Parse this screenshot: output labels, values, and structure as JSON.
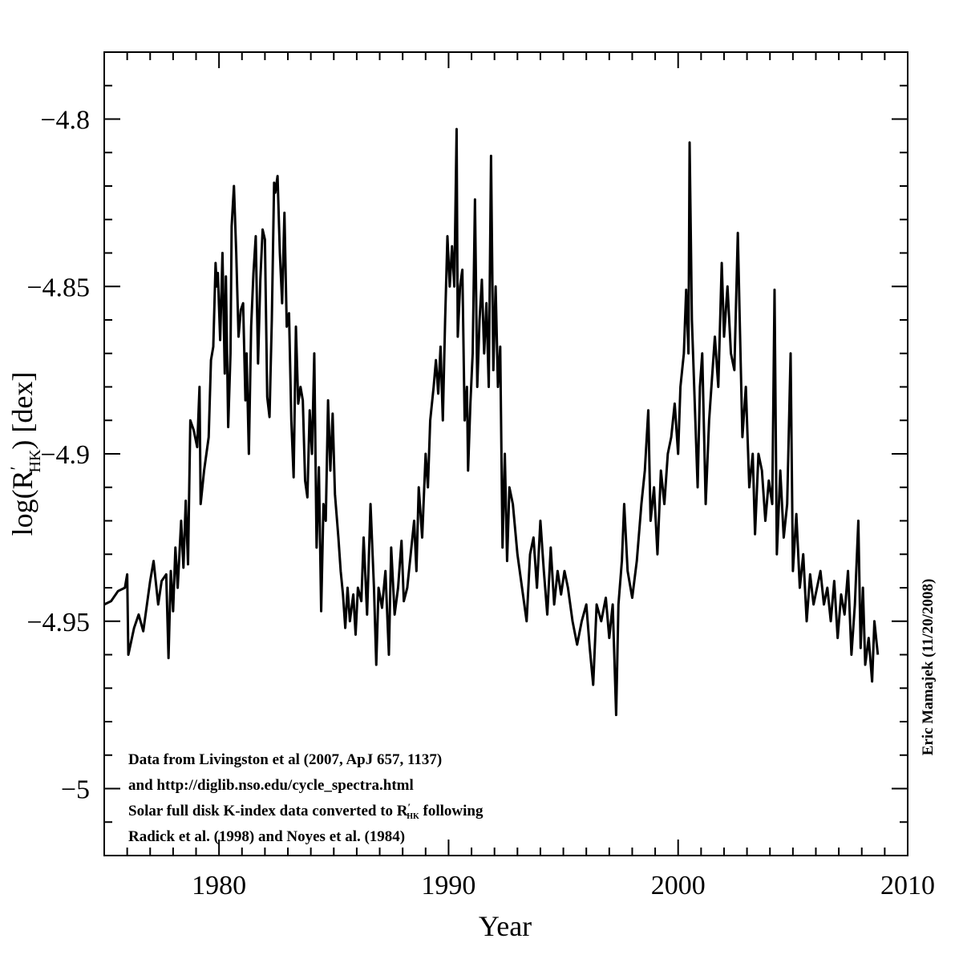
{
  "chart_data": {
    "type": "line",
    "xlabel": "Year",
    "ylabel": {
      "main": "log(R",
      "prime": "′",
      "sub": "HK",
      "rest": ") [dex]"
    },
    "annotations": [
      [
        "Data from Livingston et al (2007, ApJ 657, 1137)"
      ],
      [
        "and http://diglib.nso.edu/cycle_spectra.html"
      ],
      [
        "Solar full disk K-index data converted to R",
        "′",
        "HK",
        " following"
      ],
      [
        "Radick et al. (1998) and Noyes et al. (1984)"
      ]
    ],
    "credit": "Eric Mamajek (11/20/2008)",
    "color": "#000000",
    "xlim": [
      1975,
      2010
    ],
    "ylim": [
      -5.02,
      -4.78
    ],
    "xticks": [
      1980,
      1990,
      2000,
      2010
    ],
    "xticks_minor": [
      1976,
      1977,
      1978,
      1979,
      1981,
      1982,
      1983,
      1984,
      1985,
      1986,
      1987,
      1988,
      1989,
      1991,
      1992,
      1993,
      1994,
      1995,
      1996,
      1997,
      1998,
      1999,
      2001,
      2002,
      2003,
      2004,
      2005,
      2006,
      2007,
      2008,
      2009
    ],
    "yticks": [
      {
        "value": -5,
        "label": "−5"
      },
      {
        "value": -4.95,
        "label": "−4.95"
      },
      {
        "value": -4.9,
        "label": "−4.9"
      },
      {
        "value": -4.85,
        "label": "−4.85"
      },
      {
        "value": -4.8,
        "label": "−4.8"
      }
    ],
    "yticks_minor": [
      -5.01,
      -4.99,
      -4.98,
      -4.97,
      -4.96,
      -4.94,
      -4.93,
      -4.92,
      -4.91,
      -4.89,
      -4.88,
      -4.87,
      -4.86,
      -4.84,
      -4.83,
      -4.82,
      -4.81,
      -4.79
    ],
    "x": [
      1975.0,
      1975.3,
      1975.6,
      1975.9,
      1976.0,
      1976.05,
      1976.3,
      1976.5,
      1976.7,
      1977.0,
      1977.15,
      1977.35,
      1977.5,
      1977.7,
      1977.8,
      1977.9,
      1978.0,
      1978.1,
      1978.2,
      1978.35,
      1978.45,
      1978.55,
      1978.65,
      1978.75,
      1978.9,
      1979.05,
      1979.15,
      1979.2,
      1979.35,
      1979.55,
      1979.65,
      1979.75,
      1979.85,
      1979.9,
      1979.95,
      1980.05,
      1980.15,
      1980.25,
      1980.3,
      1980.4,
      1980.5,
      1980.55,
      1980.65,
      1980.75,
      1980.85,
      1980.95,
      1981.05,
      1981.15,
      1981.2,
      1981.3,
      1981.4,
      1981.5,
      1981.6,
      1981.7,
      1981.8,
      1981.9,
      1982.0,
      1982.1,
      1982.2,
      1982.3,
      1982.4,
      1982.45,
      1982.55,
      1982.65,
      1982.75,
      1982.85,
      1982.95,
      1983.05,
      1983.15,
      1983.25,
      1983.35,
      1983.45,
      1983.55,
      1983.65,
      1983.75,
      1983.85,
      1983.95,
      1984.05,
      1984.15,
      1984.25,
      1984.35,
      1984.45,
      1984.55,
      1984.65,
      1984.75,
      1984.85,
      1984.95,
      1985.05,
      1985.2,
      1985.3,
      1985.4,
      1985.5,
      1985.6,
      1985.7,
      1985.85,
      1985.95,
      1986.05,
      1986.2,
      1986.3,
      1986.45,
      1986.6,
      1986.75,
      1986.85,
      1986.95,
      1987.1,
      1987.25,
      1987.4,
      1987.5,
      1987.65,
      1987.8,
      1987.95,
      1988.05,
      1988.2,
      1988.35,
      1988.5,
      1988.6,
      1988.7,
      1988.85,
      1989.0,
      1989.1,
      1989.2,
      1989.35,
      1989.45,
      1989.55,
      1989.65,
      1989.75,
      1989.85,
      1989.95,
      1990.05,
      1990.15,
      1990.25,
      1990.35,
      1990.4,
      1990.5,
      1990.6,
      1990.7,
      1990.8,
      1990.85,
      1990.95,
      1991.05,
      1991.15,
      1991.25,
      1991.35,
      1991.45,
      1991.55,
      1991.65,
      1991.75,
      1991.85,
      1991.95,
      1992.05,
      1992.15,
      1992.25,
      1992.35,
      1992.45,
      1992.55,
      1992.65,
      1992.8,
      1993.0,
      1993.2,
      1993.4,
      1993.55,
      1993.7,
      1993.85,
      1994.0,
      1994.15,
      1994.3,
      1994.45,
      1994.6,
      1994.75,
      1994.9,
      1995.05,
      1995.2,
      1995.4,
      1995.6,
      1995.8,
      1996.0,
      1996.15,
      1996.3,
      1996.45,
      1996.65,
      1996.85,
      1997.0,
      1997.15,
      1997.3,
      1997.4,
      1997.55,
      1997.65,
      1997.8,
      1998.0,
      1998.2,
      1998.4,
      1998.55,
      1998.7,
      1998.8,
      1998.95,
      1999.1,
      1999.25,
      1999.4,
      1999.55,
      1999.7,
      1999.85,
      2000.0,
      2000.1,
      2000.25,
      2000.35,
      2000.45,
      2000.5,
      2000.6,
      2000.7,
      2000.85,
      2000.95,
      2001.05,
      2001.2,
      2001.35,
      2001.5,
      2001.6,
      2001.75,
      2001.9,
      2002.0,
      2002.15,
      2002.3,
      2002.45,
      2002.6,
      2002.7,
      2002.8,
      2002.95,
      2003.1,
      2003.25,
      2003.35,
      2003.5,
      2003.65,
      2003.8,
      2003.95,
      2004.1,
      2004.2,
      2004.3,
      2004.45,
      2004.6,
      2004.75,
      2004.9,
      2005.0,
      2005.15,
      2005.3,
      2005.45,
      2005.6,
      2005.75,
      2005.9,
      2006.05,
      2006.2,
      2006.35,
      2006.5,
      2006.65,
      2006.8,
      2006.95,
      2007.1,
      2007.25,
      2007.4,
      2007.55,
      2007.7,
      2007.85,
      2007.95,
      2008.05,
      2008.15,
      2008.3,
      2008.45,
      2008.55,
      2008.7
    ],
    "values": [
      -4.945,
      -4.944,
      -4.941,
      -4.94,
      -4.936,
      -4.96,
      -4.952,
      -4.948,
      -4.953,
      -4.938,
      -4.932,
      -4.945,
      -4.938,
      -4.936,
      -4.961,
      -4.935,
      -4.947,
      -4.928,
      -4.94,
      -4.92,
      -4.934,
      -4.914,
      -4.933,
      -4.89,
      -4.893,
      -4.898,
      -4.88,
      -4.915,
      -4.905,
      -4.895,
      -4.872,
      -4.868,
      -4.843,
      -4.85,
      -4.846,
      -4.866,
      -4.84,
      -4.876,
      -4.847,
      -4.892,
      -4.87,
      -4.832,
      -4.82,
      -4.84,
      -4.865,
      -4.857,
      -4.855,
      -4.884,
      -4.87,
      -4.9,
      -4.862,
      -4.846,
      -4.835,
      -4.873,
      -4.848,
      -4.833,
      -4.836,
      -4.883,
      -4.889,
      -4.86,
      -4.819,
      -4.822,
      -4.817,
      -4.84,
      -4.855,
      -4.828,
      -4.862,
      -4.858,
      -4.89,
      -4.907,
      -4.862,
      -4.885,
      -4.88,
      -4.884,
      -4.908,
      -4.913,
      -4.887,
      -4.9,
      -4.87,
      -4.928,
      -4.904,
      -4.947,
      -4.915,
      -4.92,
      -4.884,
      -4.905,
      -4.888,
      -4.912,
      -4.925,
      -4.935,
      -4.942,
      -4.952,
      -4.94,
      -4.95,
      -4.942,
      -4.954,
      -4.94,
      -4.944,
      -4.925,
      -4.948,
      -4.915,
      -4.94,
      -4.963,
      -4.94,
      -4.946,
      -4.935,
      -4.96,
      -4.928,
      -4.948,
      -4.94,
      -4.926,
      -4.944,
      -4.94,
      -4.93,
      -4.92,
      -4.935,
      -4.91,
      -4.925,
      -4.9,
      -4.91,
      -4.89,
      -4.88,
      -4.872,
      -4.882,
      -4.868,
      -4.89,
      -4.86,
      -4.835,
      -4.85,
      -4.838,
      -4.85,
      -4.803,
      -4.865,
      -4.85,
      -4.845,
      -4.89,
      -4.88,
      -4.905,
      -4.885,
      -4.87,
      -4.824,
      -4.88,
      -4.86,
      -4.848,
      -4.87,
      -4.855,
      -4.88,
      -4.811,
      -4.875,
      -4.85,
      -4.88,
      -4.868,
      -4.928,
      -4.9,
      -4.932,
      -4.91,
      -4.915,
      -4.93,
      -4.94,
      -4.95,
      -4.93,
      -4.925,
      -4.94,
      -4.92,
      -4.935,
      -4.948,
      -4.928,
      -4.945,
      -4.935,
      -4.942,
      -4.935,
      -4.94,
      -4.95,
      -4.957,
      -4.95,
      -4.945,
      -4.958,
      -4.969,
      -4.945,
      -4.95,
      -4.943,
      -4.955,
      -4.945,
      -4.978,
      -4.945,
      -4.932,
      -4.915,
      -4.935,
      -4.943,
      -4.932,
      -4.915,
      -4.905,
      -4.887,
      -4.92,
      -4.91,
      -4.93,
      -4.905,
      -4.915,
      -4.9,
      -4.895,
      -4.885,
      -4.9,
      -4.88,
      -4.87,
      -4.851,
      -4.87,
      -4.807,
      -4.86,
      -4.88,
      -4.91,
      -4.88,
      -4.87,
      -4.915,
      -4.89,
      -4.875,
      -4.865,
      -4.88,
      -4.843,
      -4.865,
      -4.85,
      -4.87,
      -4.875,
      -4.834,
      -4.865,
      -4.895,
      -4.88,
      -4.91,
      -4.9,
      -4.924,
      -4.9,
      -4.905,
      -4.92,
      -4.908,
      -4.915,
      -4.851,
      -4.93,
      -4.905,
      -4.925,
      -4.915,
      -4.87,
      -4.935,
      -4.918,
      -4.94,
      -4.93,
      -4.95,
      -4.936,
      -4.945,
      -4.94,
      -4.935,
      -4.945,
      -4.94,
      -4.95,
      -4.938,
      -4.955,
      -4.942,
      -4.948,
      -4.935,
      -4.96,
      -4.945,
      -4.92,
      -4.958,
      -4.94,
      -4.963,
      -4.955,
      -4.968,
      -4.95,
      -4.96
    ]
  }
}
